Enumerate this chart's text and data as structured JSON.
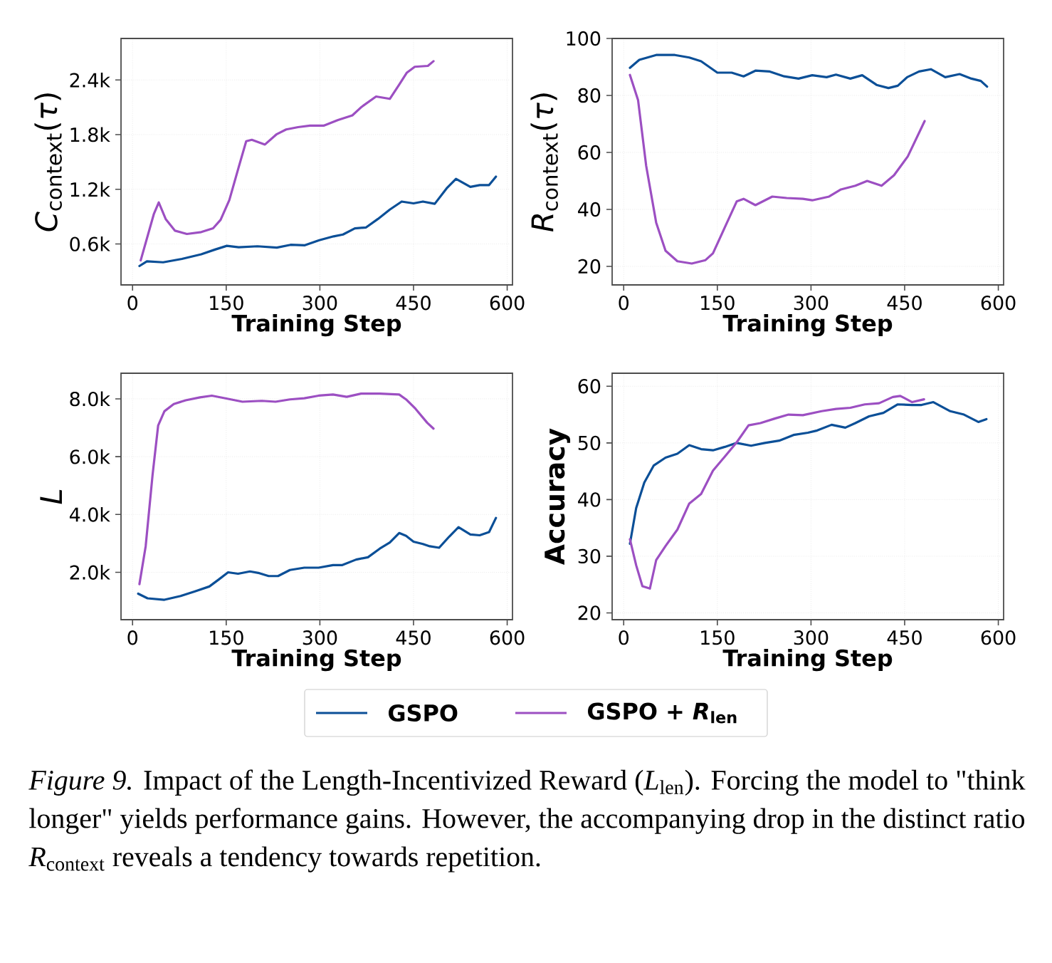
{
  "chart_data": [
    {
      "type": "line",
      "xlabel": "Training Step",
      "ylabel": "*C*$_{context}$(*τ*)",
      "xlim": [
        -18.5,
        608.5
      ],
      "xticks": [
        0,
        150,
        300,
        450,
        600
      ],
      "ylim": [
        150,
        2855
      ],
      "yticks": [
        {
          "value": 600,
          "label": "0.6k"
        },
        {
          "value": 1200,
          "label": "1.2k"
        },
        {
          "value": 1800,
          "label": "1.8k"
        },
        {
          "value": 2400,
          "label": "2.4k"
        }
      ],
      "grid": true,
      "legend": "bottom",
      "series": [
        {
          "name": "GSPO",
          "color": "#0b4f97",
          "x": [
            11,
            23,
            49,
            79,
            110,
            132,
            151,
            170,
            200,
            231,
            253,
            276,
            299,
            322,
            337,
            356,
            374,
            393,
            412,
            431,
            450,
            465,
            484,
            503,
            518,
            541,
            556,
            571,
            582
          ],
          "values": [
            357,
            409,
            398,
            435,
            486,
            538,
            579,
            564,
            574,
            559,
            590,
            585,
            641,
            683,
            703,
            771,
            781,
            874,
            977,
            1065,
            1045,
            1065,
            1040,
            1210,
            1314,
            1226,
            1246,
            1246,
            1339
          ]
        },
        {
          "name": "GSPO + *R*$_{len}$",
          "color": "#9c4fc2",
          "x": [
            13,
            34,
            42,
            53,
            68,
            87,
            110,
            129,
            141,
            155,
            170,
            182,
            191,
            212,
            231,
            246,
            265,
            284,
            306,
            329,
            352,
            367,
            390,
            412,
            427,
            439,
            452,
            473,
            482
          ],
          "values": [
            419,
            926,
            1055,
            874,
            745,
            709,
            730,
            771,
            864,
            1081,
            1443,
            1727,
            1743,
            1691,
            1805,
            1856,
            1882,
            1898,
            1898,
            1960,
            2011,
            2105,
            2218,
            2192,
            2347,
            2477,
            2544,
            2554,
            2606
          ]
        }
      ]
    },
    {
      "type": "line",
      "xlabel": "Training Step",
      "ylabel": "*R*$_{context}$(*τ*)",
      "xlim": [
        -18.5,
        608.5
      ],
      "xticks": [
        0,
        150,
        300,
        450,
        600
      ],
      "ylim": [
        13.5,
        100
      ],
      "yticks": [
        20,
        40,
        60,
        80,
        100
      ],
      "grid": true,
      "series": [
        {
          "color": "#0b4f97",
          "x": [
            10,
            25,
            52,
            82,
            105,
            124,
            150,
            173,
            192,
            211,
            234,
            257,
            280,
            302,
            325,
            340,
            363,
            382,
            405,
            424,
            439,
            454,
            473,
            492,
            515,
            538,
            557,
            572,
            582
          ],
          "values": [
            89.7,
            92.5,
            94.2,
            94.2,
            93.3,
            92,
            88,
            88,
            86.7,
            88.7,
            88.4,
            86.7,
            85.9,
            87.1,
            86.4,
            87.3,
            85.9,
            87.1,
            83.7,
            82.6,
            83.4,
            86.4,
            88.4,
            89.2,
            86.4,
            87.5,
            85.9,
            85.1,
            83.1
          ]
        },
        {
          "color": "#9c4fc2",
          "x": [
            10,
            23,
            36,
            52,
            67,
            86,
            109,
            131,
            143,
            162,
            181,
            192,
            211,
            238,
            261,
            287,
            302,
            329,
            348,
            371,
            390,
            413,
            433,
            455,
            482
          ],
          "values": [
            87.2,
            78.4,
            55.3,
            35.4,
            25.5,
            21.8,
            21,
            22.2,
            24.6,
            33.7,
            42.8,
            43.7,
            41.5,
            44.5,
            44,
            43.7,
            43.2,
            44.5,
            47,
            48.3,
            50,
            48.3,
            52,
            58.6,
            71
          ]
        }
      ]
    },
    {
      "type": "line",
      "xlabel": "Training Step",
      "ylabel": "*L*",
      "xlim": [
        -18.5,
        608.5
      ],
      "xticks": [
        0,
        150,
        300,
        450,
        600
      ],
      "ylim": [
        361,
        8885
      ],
      "yticks": [
        {
          "value": 2000,
          "label": "2.0k"
        },
        {
          "value": 4000,
          "label": "4.0k"
        },
        {
          "value": 6000,
          "label": "6.0k"
        },
        {
          "value": 8000,
          "label": "8.0k"
        }
      ],
      "grid": true,
      "series": [
        {
          "color": "#0b4f97",
          "x": [
            9,
            24,
            51,
            77,
            100,
            123,
            138,
            153,
            169,
            188,
            203,
            218,
            233,
            252,
            275,
            298,
            321,
            336,
            358,
            377,
            396,
            412,
            427,
            438,
            450,
            465,
            476,
            491,
            507,
            522,
            541,
            556,
            571,
            582
          ],
          "values": [
            1260,
            1100,
            1050,
            1180,
            1340,
            1510,
            1750,
            2000,
            1950,
            2030,
            1970,
            1870,
            1870,
            2080,
            2160,
            2160,
            2250,
            2250,
            2440,
            2520,
            2820,
            3030,
            3360,
            3260,
            3060,
            2980,
            2900,
            2850,
            3230,
            3560,
            3310,
            3280,
            3390,
            3880
          ]
        },
        {
          "color": "#9c4fc2",
          "x": [
            11,
            21,
            32,
            41,
            51,
            66,
            85,
            108,
            127,
            146,
            176,
            207,
            229,
            252,
            275,
            298,
            321,
            343,
            366,
            396,
            427,
            438,
            453,
            472,
            482
          ],
          "values": [
            1590,
            2900,
            5360,
            7080,
            7570,
            7820,
            7950,
            8050,
            8110,
            8030,
            7900,
            7930,
            7900,
            7980,
            8020,
            8110,
            8150,
            8070,
            8180,
            8180,
            8150,
            7980,
            7660,
            7170,
            6970
          ]
        }
      ]
    },
    {
      "type": "line",
      "xlabel": "Training Step",
      "ylabel": "Accuracy",
      "xlim": [
        -18.5,
        608.5
      ],
      "xticks": [
        0,
        150,
        300,
        450,
        600
      ],
      "ylim": [
        18.8,
        62.3
      ],
      "yticks": [
        20,
        30,
        40,
        50,
        60
      ],
      "grid": true,
      "annotations": [
        "*Figure 9.* Impact of the Length-Incentivized Reward (*L*$_{len}$). Forcing the model to \"think longer\" yields performance gains. However, the accompanying drop in the distinct ratio *R*$_{context}$ reveals a tendency towards repetition."
      ],
      "series": [
        {
          "color": "#0b4f97",
          "x": [
            10,
            20,
            33,
            48,
            67,
            86,
            105,
            124,
            143,
            162,
            181,
            204,
            226,
            249,
            272,
            295,
            310,
            333,
            355,
            371,
            393,
            416,
            439,
            462,
            477,
            496,
            523,
            545,
            568,
            581
          ],
          "values": [
            32.2,
            38.5,
            43,
            46,
            47.4,
            48.1,
            49.6,
            48.9,
            48.7,
            49.3,
            50,
            49.5,
            50,
            50.4,
            51.4,
            51.8,
            52.2,
            53.2,
            52.7,
            53.5,
            54.7,
            55.3,
            56.8,
            56.7,
            56.7,
            57.2,
            55.6,
            55,
            53.7,
            54.2
          ]
        },
        {
          "color": "#9c4fc2",
          "x": [
            10,
            20,
            30,
            42,
            52,
            67,
            86,
            105,
            124,
            143,
            162,
            181,
            200,
            219,
            242,
            264,
            287,
            317,
            340,
            363,
            386,
            409,
            431,
            443,
            462,
            481
          ],
          "values": [
            33,
            28.4,
            24.7,
            24.3,
            29.3,
            31.8,
            34.7,
            39.3,
            41,
            45.1,
            47.6,
            50.1,
            53.1,
            53.5,
            54.3,
            55,
            54.9,
            55.6,
            56,
            56.2,
            56.8,
            57,
            58.1,
            58.3,
            57.2,
            57.7
          ]
        }
      ]
    }
  ]
}
